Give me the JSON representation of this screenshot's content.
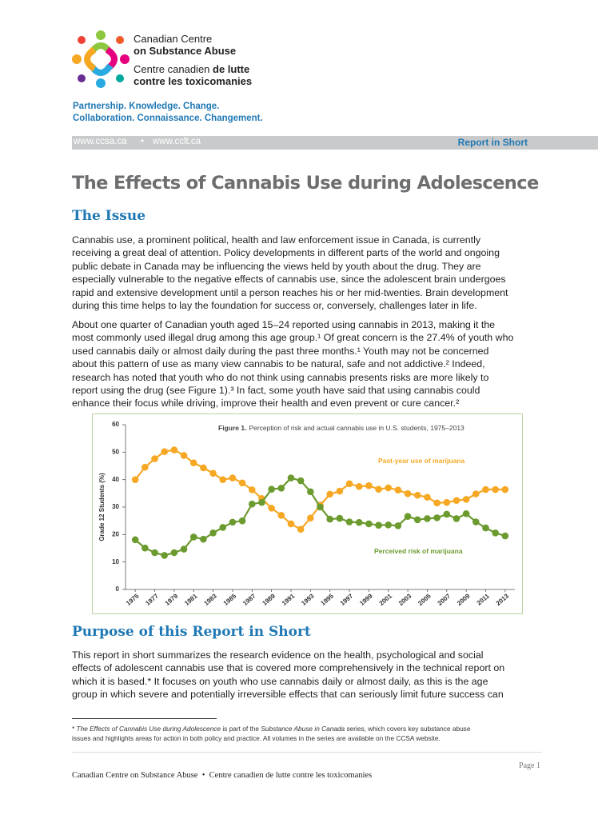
{
  "header": {
    "org_lines": [
      "Canadian Centre",
      "on Substance Abuse",
      "Centre canadien ",
      "de lutte",
      "contre les toxicomanies"
    ],
    "taglines": [
      "Partnership. Knowledge. Change.",
      "Collaboration. Connaissance. Changement."
    ],
    "url_en": "www.ccsa.ca",
    "url_separator": "•",
    "url_fr": "www.cclt.ca",
    "series": "Report in Short"
  },
  "title": "The Effects of Cannabis Use during Adolescence",
  "sections": [
    {
      "heading": "The Issue",
      "paragraphs": [
        [
          "Cannabis use, a prominent political, health and law enforcement issue in Canada, is currently",
          "receiving a great deal of attention. Policy developments in different parts of the world and ongoing",
          "public debate in Canada may be influencing the views held by youth about the drug. They are",
          "especially vulnerable to the negative effects of cannabis use, since the adolescent brain undergoes",
          "rapid and extensive development until a person reaches his or her mid-twenties. Brain development",
          "during this time helps to lay the foundation for success or, conversely, challenges later in life."
        ],
        [
          "About one quarter of Canadian youth aged 15–24 reported using cannabis in 2013, making it the",
          "most commonly used illegal drug among this age group.¹ Of great concern is the 27.4% of youth who",
          "used cannabis daily or almost daily during the past three months.¹ Youth may not be concerned",
          "about this pattern of use as many view cannabis to be natural, safe and not addictive.² Indeed,",
          "research has noted that youth who do not think using cannabis presents risks are more likely to",
          "report using the drug (see Figure 1).³ In fact, some youth have said that using cannabis could",
          "enhance their focus while driving, improve their health and even prevent or cure cancer.²"
        ]
      ]
    },
    {
      "heading": "Purpose of this Report in Short",
      "paragraphs": [
        [
          "This report in short summarizes the research evidence on the health, psychological and social",
          "effects of adolescent cannabis use that is covered more comprehensively in the technical report on",
          "which it is based.* It focuses on youth who use cannabis daily or almost daily, as this is the age",
          "group in which severe and potentially irreversible effects that can seriously limit future success can"
        ]
      ]
    }
  ],
  "footnote": [
    "* ",
    "The Effects of Cannabis Use during Adolescence",
    " is part of the ",
    "Substance Abuse in Canada",
    " series, which covers key substance abuse",
    "issues and highlights areas for action in both policy and practice. All volumes in the series are available on the CCSA website."
  ],
  "footer": {
    "page": "Page 1",
    "org_en": "Canadian Centre on Substance Abuse",
    "separator": "•",
    "org_fr": "Centre canadien de lutte contre les toxicomanies"
  },
  "chart_data": {
    "type": "line",
    "figure_label": "Figure 1.",
    "title": "Perception of risk and actual cannabis use in U.S. students, 1975–2013",
    "y_label": "Grade 12 Students (%)",
    "x": [
      1975,
      1976,
      1977,
      1978,
      1979,
      1980,
      1981,
      1982,
      1983,
      1984,
      1985,
      1986,
      1987,
      1988,
      1989,
      1990,
      1991,
      1992,
      1993,
      1994,
      1995,
      1996,
      1997,
      1998,
      1999,
      2000,
      2001,
      2002,
      2003,
      2004,
      2005,
      2006,
      2007,
      2008,
      2009,
      2010,
      2011,
      2012,
      2013
    ],
    "xlim": [
      1974,
      2014
    ],
    "xticks": [
      1975,
      1977,
      1979,
      1981,
      1983,
      1985,
      1987,
      1989,
      1991,
      1993,
      1995,
      1997,
      1999,
      2001,
      2003,
      2005,
      2007,
      2009,
      2011,
      2013
    ],
    "ylim": [
      0,
      60
    ],
    "yticks": [
      0,
      10,
      20,
      30,
      40,
      50,
      60
    ],
    "series": [
      {
        "name": "Past-year use of marijuana",
        "color": "#f6a824",
        "values": [
          40.0,
          44.5,
          47.6,
          50.2,
          50.8,
          48.8,
          46.1,
          44.3,
          42.3,
          40.0,
          40.6,
          38.8,
          36.3,
          33.1,
          29.6,
          27.0,
          23.9,
          21.9,
          26.0,
          30.7,
          34.7,
          35.8,
          38.5,
          37.5,
          37.8,
          36.5,
          37.0,
          36.2,
          34.9,
          34.3,
          33.6,
          31.5,
          31.7,
          32.4,
          32.8,
          34.8,
          36.4,
          36.4,
          36.4
        ]
      },
      {
        "name": "Perceived risk of marijuana",
        "color": "#6b9a2e",
        "values": [
          18.1,
          15.1,
          13.4,
          12.4,
          13.4,
          14.7,
          19.1,
          18.3,
          20.6,
          22.6,
          24.5,
          25.0,
          31.1,
          31.7,
          36.5,
          36.9,
          40.6,
          39.6,
          35.6,
          30.0,
          25.6,
          25.9,
          24.6,
          24.4,
          23.9,
          23.4,
          23.5,
          23.2,
          26.6,
          25.4,
          25.8,
          26.1,
          27.4,
          25.8,
          27.6,
          24.6,
          22.4,
          20.6,
          19.5
        ]
      }
    ]
  }
}
